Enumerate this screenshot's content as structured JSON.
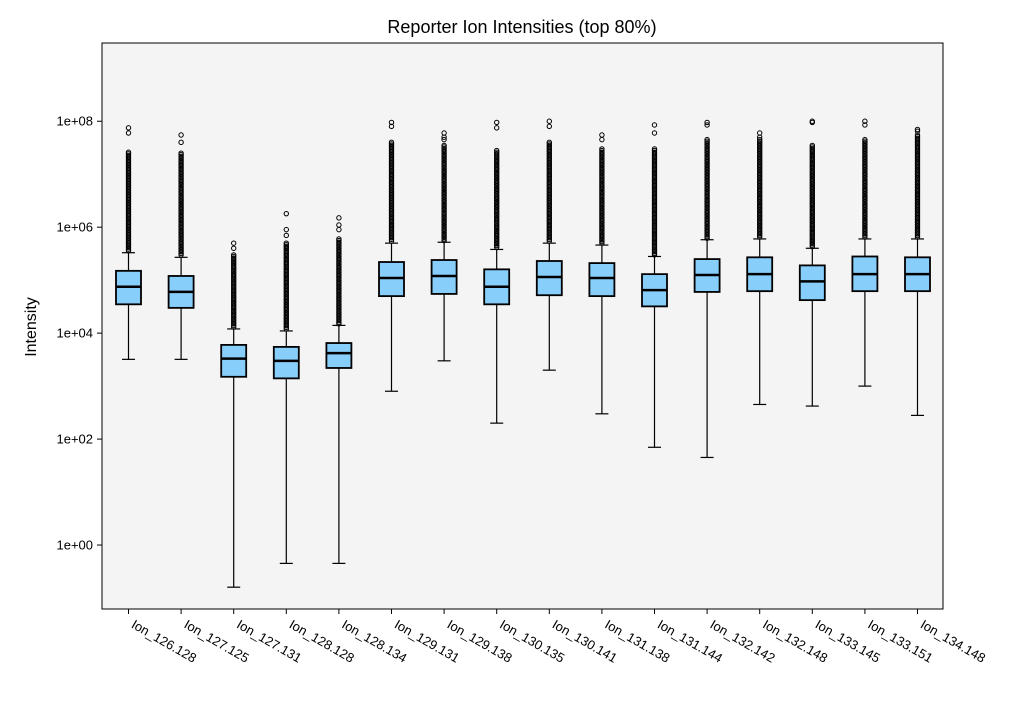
{
  "chart_data": {
    "type": "box",
    "title": "Reporter Ion Intensities (top 80%)",
    "xlabel": "",
    "ylabel": "Intensity",
    "yscale": "log",
    "ylim": [
      0.062,
      3000000000
    ],
    "yticks": [
      {
        "value": 1,
        "label": "1e+00"
      },
      {
        "value": 100,
        "label": "1e+02"
      },
      {
        "value": 10000,
        "label": "1e+04"
      },
      {
        "value": 1000000,
        "label": "1e+06"
      },
      {
        "value": 100000000,
        "label": "1e+08"
      }
    ],
    "grid": false,
    "colors": {
      "box_fill": "#87cefa",
      "plot_bg": "#f4f4f4",
      "line": "#000000"
    },
    "categories": [
      "Ion_126.128",
      "Ion_127.125",
      "Ion_127.131",
      "Ion_128.128",
      "Ion_128.134",
      "Ion_129.131",
      "Ion_129.138",
      "Ion_130.135",
      "Ion_130.141",
      "Ion_131.138",
      "Ion_131.144",
      "Ion_132.142",
      "Ion_132.148",
      "Ion_133.145",
      "Ion_133.151",
      "Ion_134.148"
    ],
    "boxes": [
      {
        "name": "Ion_126.128",
        "whislo": 3200,
        "q1": 35000,
        "med": 75000,
        "q3": 150000,
        "whishi": 330000,
        "flier_lo": 360000,
        "flier_hi": 26000000,
        "flier_max": [
          75000000,
          60000000
        ]
      },
      {
        "name": "Ion_127.125",
        "whislo": 3200,
        "q1": 30000,
        "med": 60000,
        "q3": 120000,
        "whishi": 270000,
        "flier_lo": 300000,
        "flier_hi": 25000000,
        "flier_max": [
          55000000,
          40000000
        ]
      },
      {
        "name": "Ion_127.131",
        "whislo": 0.16,
        "q1": 1500,
        "med": 3300,
        "q3": 6000,
        "whishi": 12000,
        "flier_lo": 13000,
        "flier_hi": 300000,
        "flier_max": [
          500000,
          400000
        ]
      },
      {
        "name": "Ion_128.128",
        "whislo": 0.45,
        "q1": 1400,
        "med": 3000,
        "q3": 5500,
        "whishi": 11000,
        "flier_lo": 12000,
        "flier_hi": 500000,
        "flier_max": [
          1800000,
          900000,
          700000
        ]
      },
      {
        "name": "Ion_128.134",
        "whislo": 0.45,
        "q1": 2200,
        "med": 4200,
        "q3": 6500,
        "whishi": 14000,
        "flier_lo": 15000,
        "flier_hi": 600000,
        "flier_max": [
          1500000,
          1100000,
          900000
        ]
      },
      {
        "name": "Ion_129.131",
        "whislo": 800,
        "q1": 50000,
        "med": 110000,
        "q3": 220000,
        "whishi": 500000,
        "flier_lo": 550000,
        "flier_hi": 40000000,
        "flier_max": [
          95000000,
          80000000
        ]
      },
      {
        "name": "Ion_129.138",
        "whislo": 3000,
        "q1": 55000,
        "med": 120000,
        "q3": 240000,
        "whishi": 520000,
        "flier_lo": 560000,
        "flier_hi": 35000000,
        "flier_max": [
          60000000,
          50000000,
          45000000
        ]
      },
      {
        "name": "Ion_130.135",
        "whislo": 200,
        "q1": 35000,
        "med": 75000,
        "q3": 160000,
        "whishi": 380000,
        "flier_lo": 420000,
        "flier_hi": 28000000,
        "flier_max": [
          95000000,
          75000000
        ]
      },
      {
        "name": "Ion_130.141",
        "whislo": 2000,
        "q1": 52000,
        "med": 115000,
        "q3": 230000,
        "whishi": 500000,
        "flier_lo": 550000,
        "flier_hi": 40000000,
        "flier_max": [
          100000000,
          80000000
        ]
      },
      {
        "name": "Ion_131.138",
        "whislo": 300,
        "q1": 50000,
        "med": 110000,
        "q3": 210000,
        "whishi": 460000,
        "flier_lo": 500000,
        "flier_hi": 30000000,
        "flier_max": [
          55000000,
          45000000
        ]
      },
      {
        "name": "Ion_131.144",
        "whislo": 70,
        "q1": 32000,
        "med": 65000,
        "q3": 130000,
        "whishi": 280000,
        "flier_lo": 300000,
        "flier_hi": 30000000,
        "flier_max": [
          85000000,
          60000000
        ]
      },
      {
        "name": "Ion_132.142",
        "whislo": 45,
        "q1": 60000,
        "med": 125000,
        "q3": 250000,
        "whishi": 580000,
        "flier_lo": 620000,
        "flier_hi": 45000000,
        "flier_max": [
          95000000,
          85000000
        ]
      },
      {
        "name": "Ion_132.148",
        "whislo": 450,
        "q1": 62000,
        "med": 130000,
        "q3": 270000,
        "whishi": 600000,
        "flier_lo": 650000,
        "flier_hi": 45000000,
        "flier_max": [
          60000000,
          50000000
        ]
      },
      {
        "name": "Ion_133.145",
        "whislo": 420,
        "q1": 42000,
        "med": 95000,
        "q3": 190000,
        "whishi": 400000,
        "flier_lo": 430000,
        "flier_hi": 35000000,
        "flier_max": [
          100000000,
          95000000
        ]
      },
      {
        "name": "Ion_133.151",
        "whislo": 1000,
        "q1": 62000,
        "med": 130000,
        "q3": 280000,
        "whishi": 600000,
        "flier_lo": 650000,
        "flier_hi": 45000000,
        "flier_max": [
          100000000,
          85000000
        ]
      },
      {
        "name": "Ion_134.148",
        "whislo": 280,
        "q1": 62000,
        "med": 130000,
        "q3": 270000,
        "whishi": 600000,
        "flier_lo": 650000,
        "flier_hi": 55000000,
        "flier_max": [
          70000000,
          65000000
        ]
      }
    ]
  }
}
